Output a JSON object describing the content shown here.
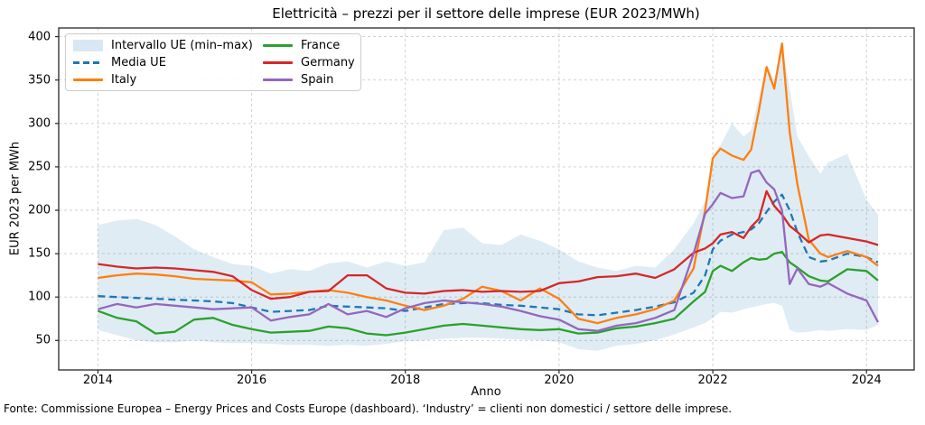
{
  "title": "Elettricità – prezzi per il settore delle imprese (EUR 2023/MWh)",
  "footer": "Fonte: Commissione Europea – Energy Prices and Costs Europe (dashboard). ‘Industry’ = clienti non domestici / settore delle imprese.",
  "colors": {
    "eu_band_fill": "#dce8f5",
    "eu_avg": "#1f77b4",
    "italy": "#ff7f0e",
    "france": "#2ca02c",
    "germany": "#d62728",
    "spain": "#9467bd",
    "grid": "#cccccc",
    "spine": "#262626"
  },
  "chart_data": {
    "type": "line",
    "title": "Elettricità – prezzi per il settore delle imprese (EUR 2023/MWh)",
    "xlabel": "Anno",
    "ylabel": "EUR 2023 per MWh",
    "xlim": [
      2013.49,
      2024.62
    ],
    "ylim": [
      16,
      410
    ],
    "x_ticks": [
      2014,
      2016,
      2018,
      2020,
      2022,
      2024
    ],
    "y_ticks": [
      50,
      100,
      150,
      200,
      250,
      300,
      350,
      400
    ],
    "grid": true,
    "legend_position": "upper left",
    "x": [
      2014.0,
      2014.25,
      2014.5,
      2014.75,
      2015.0,
      2015.25,
      2015.5,
      2015.75,
      2016.0,
      2016.25,
      2016.5,
      2016.75,
      2017.0,
      2017.25,
      2017.5,
      2017.75,
      2018.0,
      2018.25,
      2018.5,
      2018.75,
      2019.0,
      2019.25,
      2019.5,
      2019.75,
      2020.0,
      2020.25,
      2020.5,
      2020.75,
      2021.0,
      2021.25,
      2021.5,
      2021.75,
      2021.9,
      2022.0,
      2022.1,
      2022.25,
      2022.4,
      2022.5,
      2022.6,
      2022.7,
      2022.8,
      2022.9,
      2023.0,
      2023.1,
      2023.25,
      2023.4,
      2023.5,
      2023.75,
      2024.0,
      2024.15
    ],
    "band": {
      "name": "Intervallo UE (min–max)",
      "color": "#1f77b4",
      "fill_opacity": 0.14,
      "max": [
        183,
        188,
        190,
        183,
        170,
        155,
        146,
        138,
        136,
        127,
        132,
        130,
        139,
        141,
        134,
        141,
        136,
        140,
        177,
        180,
        162,
        160,
        172,
        165,
        155,
        141,
        134,
        130,
        136,
        134,
        155,
        185,
        210,
        262,
        275,
        300,
        285,
        292,
        330,
        368,
        350,
        392,
        340,
        285,
        262,
        242,
        255,
        265,
        212,
        195
      ],
      "min": [
        62,
        56,
        50,
        48,
        48,
        50,
        48,
        47,
        47,
        46,
        45,
        45,
        44,
        45,
        44,
        46,
        49,
        50,
        52,
        53,
        53,
        52,
        51,
        50,
        48,
        40,
        38,
        44,
        46,
        50,
        57,
        65,
        70,
        76,
        83,
        82,
        86,
        88,
        90,
        92,
        93,
        90,
        62,
        59,
        60,
        62,
        61,
        63,
        62,
        68
      ]
    },
    "series": [
      {
        "name": "Media UE",
        "color": "#1f77b4",
        "dash": true,
        "values": [
          101,
          100,
          99,
          98,
          97,
          96,
          95,
          93,
          88,
          83,
          84,
          85,
          90,
          89,
          88,
          87,
          84,
          88,
          92,
          93,
          93,
          91,
          90,
          88,
          86,
          80,
          79,
          82,
          85,
          89,
          94,
          105,
          125,
          155,
          165,
          172,
          175,
          178,
          185,
          198,
          210,
          218,
          200,
          175,
          146,
          141,
          142,
          150,
          146,
          140
        ]
      },
      {
        "name": "Italy",
        "color": "#ff7f0e",
        "dash": false,
        "values": [
          122,
          125,
          127,
          126,
          124,
          121,
          120,
          119,
          117,
          103,
          104,
          106,
          108,
          105,
          100,
          96,
          90,
          85,
          90,
          98,
          112,
          107,
          96,
          110,
          98,
          75,
          70,
          76,
          80,
          86,
          96,
          133,
          200,
          260,
          271,
          263,
          258,
          270,
          315,
          365,
          340,
          392,
          290,
          230,
          166,
          150,
          146,
          153,
          146,
          136
        ]
      },
      {
        "name": "France",
        "color": "#2ca02c",
        "dash": false,
        "values": [
          84,
          76,
          72,
          58,
          60,
          74,
          76,
          68,
          63,
          59,
          60,
          61,
          66,
          64,
          58,
          56,
          59,
          63,
          67,
          69,
          67,
          65,
          63,
          62,
          63,
          58,
          59,
          64,
          66,
          70,
          75,
          95,
          106,
          130,
          136,
          130,
          140,
          145,
          143,
          144,
          150,
          152,
          140,
          134,
          124,
          119,
          118,
          132,
          130,
          119
        ]
      },
      {
        "name": "Germany",
        "color": "#d62728",
        "dash": false,
        "values": [
          138,
          135,
          133,
          134,
          133,
          131,
          129,
          124,
          108,
          98,
          100,
          106,
          107,
          125,
          125,
          110,
          105,
          104,
          107,
          108,
          106,
          107,
          106,
          107,
          116,
          118,
          123,
          124,
          127,
          122,
          132,
          151,
          156,
          162,
          172,
          175,
          168,
          181,
          190,
          222,
          205,
          195,
          182,
          175,
          163,
          171,
          172,
          168,
          164,
          160
        ]
      },
      {
        "name": "Spain",
        "color": "#9467bd",
        "dash": false,
        "values": [
          86,
          92,
          88,
          92,
          90,
          88,
          86,
          87,
          88,
          73,
          77,
          80,
          92,
          80,
          84,
          77,
          87,
          93,
          96,
          94,
          92,
          89,
          84,
          78,
          74,
          63,
          61,
          67,
          70,
          76,
          85,
          150,
          196,
          207,
          220,
          214,
          216,
          243,
          246,
          232,
          224,
          200,
          115,
          133,
          115,
          112,
          116,
          104,
          96,
          71
        ]
      }
    ],
    "legend_items": [
      {
        "label": "Intervallo UE (min–max)",
        "swatch": "band",
        "color": "#d9e7f4"
      },
      {
        "label": "Media UE",
        "swatch": "dashed",
        "color": "#1f77b4"
      },
      {
        "label": "Italy",
        "swatch": "line",
        "color": "#ff7f0e"
      },
      {
        "label": "France",
        "swatch": "line",
        "color": "#2ca02c"
      },
      {
        "label": "Germany",
        "swatch": "line",
        "color": "#d62728"
      },
      {
        "label": "Spain",
        "swatch": "line",
        "color": "#9467bd"
      }
    ]
  }
}
